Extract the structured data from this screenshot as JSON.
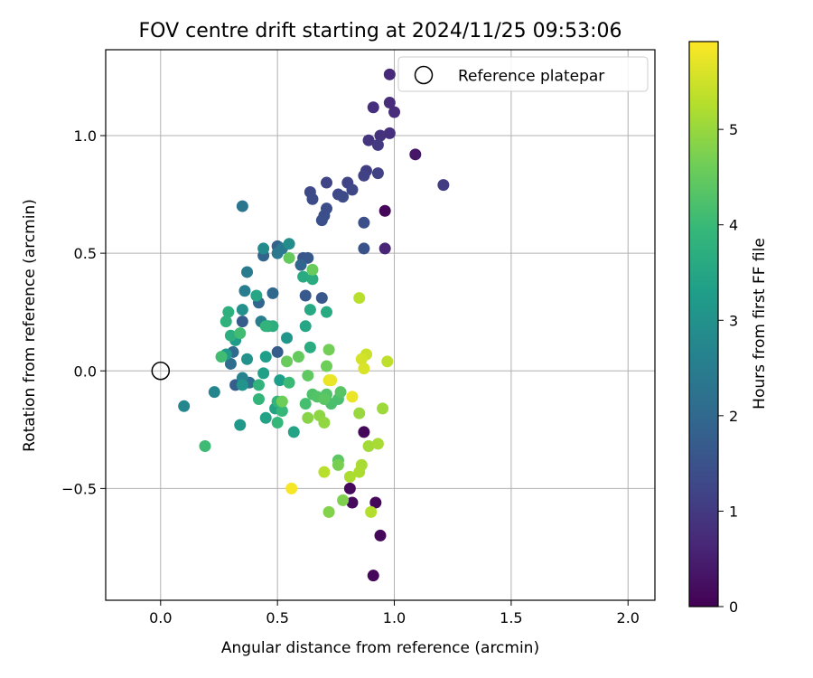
{
  "chart_data": {
    "type": "scatter",
    "title": "FOV centre drift starting at 2024/11/25 09:53:06",
    "xlabel": "Angular distance from reference (arcmin)",
    "ylabel": "Rotation from reference (arcmin)",
    "xlim": [
      -0.235,
      2.115
    ],
    "ylim": [
      -0.975,
      1.365
    ],
    "xticks": [
      0.0,
      0.5,
      1.0,
      1.5,
      2.0
    ],
    "xtick_labels": [
      "0.0",
      "0.5",
      "1.0",
      "1.5",
      "2.0"
    ],
    "yticks": [
      -0.5,
      0.0,
      0.5,
      1.0
    ],
    "ytick_labels": [
      "−0.5",
      "0.0",
      "0.5",
      "1.0"
    ],
    "grid": true,
    "legend": {
      "placement": "top-right",
      "label": "Reference platepar"
    },
    "reference_point": {
      "x": 0.0,
      "y": 0.0
    },
    "colorbar": {
      "label": "Hours from first FF file",
      "range": [
        0,
        5.92
      ],
      "ticks": [
        0,
        1,
        2,
        3,
        4,
        5
      ],
      "tick_labels": [
        "0",
        "1",
        "2",
        "3",
        "4",
        "5"
      ],
      "colormap": "viridis"
    },
    "points": [
      {
        "x": 0.96,
        "y": 0.68,
        "h": 0.1
      },
      {
        "x": 0.87,
        "y": -0.26,
        "h": 0.1
      },
      {
        "x": 0.81,
        "y": -0.5,
        "h": 0.15
      },
      {
        "x": 0.82,
        "y": -0.56,
        "h": 0.15
      },
      {
        "x": 0.92,
        "y": -0.56,
        "h": 0.1
      },
      {
        "x": 0.94,
        "y": -0.7,
        "h": 0.1
      },
      {
        "x": 0.91,
        "y": -0.87,
        "h": 0.1
      },
      {
        "x": 1.09,
        "y": 0.92,
        "h": 0.35
      },
      {
        "x": 0.96,
        "y": 0.52,
        "h": 0.6
      },
      {
        "x": 0.98,
        "y": 1.26,
        "h": 0.7
      },
      {
        "x": 0.98,
        "y": 1.14,
        "h": 0.75
      },
      {
        "x": 1.0,
        "y": 1.1,
        "h": 0.75
      },
      {
        "x": 0.91,
        "y": 1.12,
        "h": 0.8
      },
      {
        "x": 0.98,
        "y": 1.01,
        "h": 0.8
      },
      {
        "x": 0.94,
        "y": 1.0,
        "h": 0.85
      },
      {
        "x": 0.89,
        "y": 0.98,
        "h": 0.9
      },
      {
        "x": 0.93,
        "y": 0.96,
        "h": 1.0
      },
      {
        "x": 1.21,
        "y": 0.79,
        "h": 1.05
      },
      {
        "x": 0.88,
        "y": 0.85,
        "h": 1.1
      },
      {
        "x": 0.93,
        "y": 0.84,
        "h": 1.15
      },
      {
        "x": 0.87,
        "y": 0.83,
        "h": 1.15
      },
      {
        "x": 0.71,
        "y": 0.8,
        "h": 1.2
      },
      {
        "x": 0.8,
        "y": 0.8,
        "h": 1.2
      },
      {
        "x": 0.82,
        "y": 0.77,
        "h": 1.25
      },
      {
        "x": 0.76,
        "y": 0.75,
        "h": 1.3
      },
      {
        "x": 0.64,
        "y": 0.76,
        "h": 1.3
      },
      {
        "x": 0.78,
        "y": 0.74,
        "h": 1.35
      },
      {
        "x": 0.65,
        "y": 0.73,
        "h": 1.35
      },
      {
        "x": 0.71,
        "y": 0.69,
        "h": 1.4
      },
      {
        "x": 0.7,
        "y": 0.66,
        "h": 1.4
      },
      {
        "x": 0.69,
        "y": 0.64,
        "h": 1.45
      },
      {
        "x": 0.87,
        "y": 0.63,
        "h": 1.45
      },
      {
        "x": 0.87,
        "y": 0.52,
        "h": 1.5
      },
      {
        "x": 0.61,
        "y": 0.48,
        "h": 1.55
      },
      {
        "x": 0.63,
        "y": 0.48,
        "h": 1.6
      },
      {
        "x": 0.69,
        "y": 0.31,
        "h": 1.6
      },
      {
        "x": 0.62,
        "y": 0.32,
        "h": 1.65
      },
      {
        "x": 0.35,
        "y": 0.21,
        "h": 1.7
      },
      {
        "x": 0.5,
        "y": 0.08,
        "h": 1.7
      },
      {
        "x": 0.32,
        "y": -0.06,
        "h": 1.75
      },
      {
        "x": 0.36,
        "y": -0.05,
        "h": 1.8
      },
      {
        "x": 0.5,
        "y": 0.53,
        "h": 1.85
      },
      {
        "x": 0.44,
        "y": 0.49,
        "h": 1.9
      },
      {
        "x": 0.6,
        "y": 0.45,
        "h": 1.9
      },
      {
        "x": 0.42,
        "y": 0.29,
        "h": 1.95
      },
      {
        "x": 0.48,
        "y": 0.33,
        "h": 2.0
      },
      {
        "x": 0.31,
        "y": 0.08,
        "h": 2.05
      },
      {
        "x": 0.3,
        "y": 0.03,
        "h": 2.1
      },
      {
        "x": 0.38,
        "y": -0.05,
        "h": 2.15
      },
      {
        "x": 0.35,
        "y": 0.7,
        "h": 2.3
      },
      {
        "x": 0.5,
        "y": 0.5,
        "h": 2.35
      },
      {
        "x": 0.52,
        "y": 0.52,
        "h": 2.4
      },
      {
        "x": 0.37,
        "y": 0.42,
        "h": 2.45
      },
      {
        "x": 0.36,
        "y": 0.34,
        "h": 2.5
      },
      {
        "x": 0.43,
        "y": 0.21,
        "h": 2.55
      },
      {
        "x": 0.35,
        "y": -0.03,
        "h": 2.6
      },
      {
        "x": 0.23,
        "y": -0.09,
        "h": 2.7
      },
      {
        "x": 0.1,
        "y": -0.15,
        "h": 2.75
      },
      {
        "x": 0.44,
        "y": 0.52,
        "h": 2.85
      },
      {
        "x": 0.55,
        "y": 0.54,
        "h": 2.9
      },
      {
        "x": 0.35,
        "y": 0.26,
        "h": 2.95
      },
      {
        "x": 0.46,
        "y": 0.19,
        "h": 3.0
      },
      {
        "x": 0.37,
        "y": 0.05,
        "h": 3.0
      },
      {
        "x": 0.35,
        "y": -0.06,
        "h": 3.05
      },
      {
        "x": 0.54,
        "y": 0.14,
        "h": 3.1
      },
      {
        "x": 0.34,
        "y": -0.23,
        "h": 3.15
      },
      {
        "x": 0.28,
        "y": 0.07,
        "h": 3.2
      },
      {
        "x": 0.32,
        "y": 0.13,
        "h": 3.25
      },
      {
        "x": 0.45,
        "y": 0.06,
        "h": 3.3
      },
      {
        "x": 0.51,
        "y": -0.04,
        "h": 3.3
      },
      {
        "x": 0.44,
        "y": -0.01,
        "h": 3.35
      },
      {
        "x": 0.49,
        "y": -0.16,
        "h": 3.4
      },
      {
        "x": 0.45,
        "y": -0.2,
        "h": 3.4
      },
      {
        "x": 0.57,
        "y": -0.26,
        "h": 3.45
      },
      {
        "x": 0.41,
        "y": 0.32,
        "h": 3.5
      },
      {
        "x": 0.62,
        "y": 0.19,
        "h": 3.5
      },
      {
        "x": 0.64,
        "y": 0.26,
        "h": 3.55
      },
      {
        "x": 0.71,
        "y": 0.25,
        "h": 3.6
      },
      {
        "x": 0.61,
        "y": 0.4,
        "h": 3.6
      },
      {
        "x": 0.65,
        "y": 0.39,
        "h": 3.65
      },
      {
        "x": 0.64,
        "y": 0.1,
        "h": 3.65
      },
      {
        "x": 0.48,
        "y": 0.19,
        "h": 3.7
      },
      {
        "x": 0.3,
        "y": 0.15,
        "h": 3.7
      },
      {
        "x": 0.29,
        "y": 0.25,
        "h": 3.75
      },
      {
        "x": 0.28,
        "y": 0.21,
        "h": 3.8
      },
      {
        "x": 0.45,
        "y": 0.19,
        "h": 3.85
      },
      {
        "x": 0.42,
        "y": -0.06,
        "h": 3.85
      },
      {
        "x": 0.5,
        "y": -0.13,
        "h": 3.9
      },
      {
        "x": 0.42,
        "y": -0.12,
        "h": 3.9
      },
      {
        "x": 0.52,
        "y": -0.17,
        "h": 3.95
      },
      {
        "x": 0.5,
        "y": -0.22,
        "h": 3.95
      },
      {
        "x": 0.55,
        "y": -0.05,
        "h": 4.0
      },
      {
        "x": 0.19,
        "y": -0.32,
        "h": 4.05
      },
      {
        "x": 0.26,
        "y": 0.06,
        "h": 4.1
      },
      {
        "x": 0.34,
        "y": 0.16,
        "h": 4.1
      },
      {
        "x": 0.62,
        "y": -0.14,
        "h": 4.15
      },
      {
        "x": 0.73,
        "y": -0.14,
        "h": 4.2
      },
      {
        "x": 0.76,
        "y": -0.12,
        "h": 4.2
      },
      {
        "x": 0.65,
        "y": -0.1,
        "h": 4.25
      },
      {
        "x": 0.67,
        "y": -0.11,
        "h": 4.3
      },
      {
        "x": 0.71,
        "y": -0.1,
        "h": 4.3
      },
      {
        "x": 0.77,
        "y": -0.09,
        "h": 4.35
      },
      {
        "x": 0.7,
        "y": -0.12,
        "h": 4.4
      },
      {
        "x": 0.76,
        "y": -0.38,
        "h": 4.4
      },
      {
        "x": 0.63,
        "y": -0.02,
        "h": 4.45
      },
      {
        "x": 0.59,
        "y": 0.06,
        "h": 4.5
      },
      {
        "x": 0.55,
        "y": 0.48,
        "h": 4.5
      },
      {
        "x": 0.65,
        "y": 0.43,
        "h": 4.55
      },
      {
        "x": 0.54,
        "y": 0.04,
        "h": 4.55
      },
      {
        "x": 0.52,
        "y": -0.13,
        "h": 4.6
      },
      {
        "x": 0.71,
        "y": 0.02,
        "h": 4.6
      },
      {
        "x": 0.72,
        "y": 0.09,
        "h": 4.65
      },
      {
        "x": 0.76,
        "y": -0.4,
        "h": 4.7
      },
      {
        "x": 0.78,
        "y": -0.55,
        "h": 4.75
      },
      {
        "x": 0.72,
        "y": -0.6,
        "h": 4.8
      },
      {
        "x": 0.63,
        "y": -0.2,
        "h": 4.85
      },
      {
        "x": 0.68,
        "y": -0.19,
        "h": 4.9
      },
      {
        "x": 0.7,
        "y": -0.22,
        "h": 4.95
      },
      {
        "x": 0.85,
        "y": -0.18,
        "h": 5.0
      },
      {
        "x": 0.95,
        "y": -0.16,
        "h": 5.05
      },
      {
        "x": 0.89,
        "y": -0.32,
        "h": 5.1
      },
      {
        "x": 0.93,
        "y": -0.31,
        "h": 5.15
      },
      {
        "x": 0.86,
        "y": -0.4,
        "h": 5.15
      },
      {
        "x": 0.85,
        "y": -0.43,
        "h": 5.2
      },
      {
        "x": 0.81,
        "y": -0.45,
        "h": 5.2
      },
      {
        "x": 0.9,
        "y": -0.6,
        "h": 5.25
      },
      {
        "x": 0.7,
        "y": -0.43,
        "h": 5.3
      },
      {
        "x": 0.85,
        "y": 0.31,
        "h": 5.3
      },
      {
        "x": 0.97,
        "y": 0.04,
        "h": 5.35
      },
      {
        "x": 0.88,
        "y": 0.07,
        "h": 5.45
      },
      {
        "x": 0.86,
        "y": 0.05,
        "h": 5.55
      },
      {
        "x": 0.87,
        "y": 0.01,
        "h": 5.6
      },
      {
        "x": 0.72,
        "y": -0.04,
        "h": 5.7
      },
      {
        "x": 0.73,
        "y": -0.04,
        "h": 5.75
      },
      {
        "x": 0.82,
        "y": -0.11,
        "h": 5.75
      },
      {
        "x": 0.56,
        "y": -0.5,
        "h": 5.85
      }
    ]
  }
}
